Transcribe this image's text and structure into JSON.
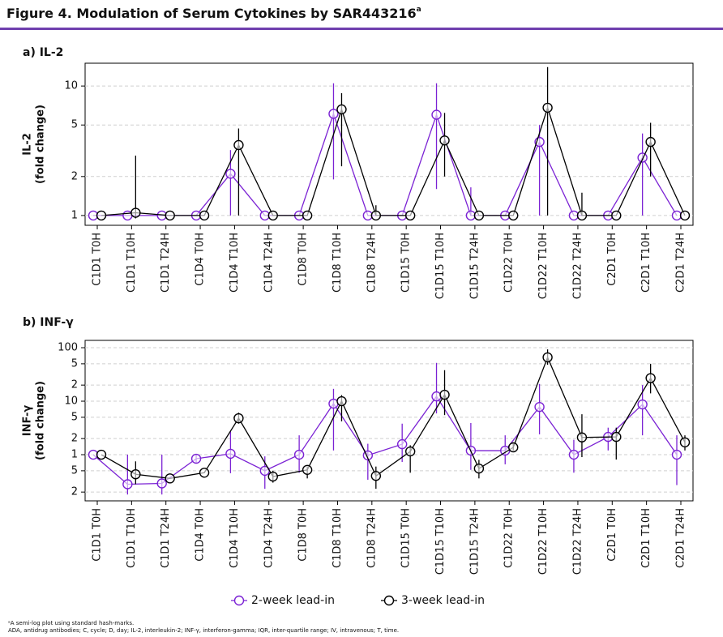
{
  "figure_title": "Figure 4. Modulation of Serum Cytokines by SAR443216",
  "figure_title_superscript": "a",
  "footnotes": [
    "ᵃA semi-log plot using standard hash-marks.",
    "ADA, antidrug antibodies; C, cycle; D, day; IL-2, interleukin-2; INF-γ, interferon-gamma; IQR, inter-quartile range; IV, intravenous; T, time."
  ],
  "chart_data": [
    {
      "type": "line",
      "title": "a) IL-2",
      "ylabel": [
        "IL-2",
        "(fold change)"
      ],
      "log_scale": true,
      "grid": true,
      "legend": "bottom",
      "categories": [
        "C1D1 T0H",
        "C1D1 T10H",
        "C1D1 T24H",
        "C1D4 T0H",
        "C1D4 T10H",
        "C1D4 T24H",
        "C1D8 T0H",
        "C1D8 T10H",
        "C1D8 T24H",
        "C1D15 T0H",
        "C1D15 T10H",
        "C1D15 T24H",
        "C1D22 T0H",
        "C1D22 T10H",
        "C1D22 T24H",
        "C2D1 T0H",
        "C2D1 T10H",
        "C2D1 T24H"
      ],
      "ylim": [
        0.84,
        15
      ],
      "yticks": [
        1,
        2,
        5,
        10
      ],
      "series": [
        {
          "name": "2-week lead-in",
          "color": "#7b22d4",
          "values": [
            1,
            1,
            1,
            1,
            2.1,
            1,
            1,
            6.1,
            1,
            1,
            6,
            1,
            1,
            3.7,
            1,
            1,
            2.8,
            1
          ],
          "low": [
            null,
            null,
            null,
            null,
            1,
            null,
            null,
            1.9,
            null,
            null,
            1.6,
            1,
            null,
            1,
            null,
            null,
            1,
            null
          ],
          "high": [
            null,
            null,
            null,
            null,
            3.2,
            null,
            null,
            10.5,
            null,
            null,
            10.5,
            1.65,
            null,
            5,
            null,
            null,
            4.3,
            null
          ]
        },
        {
          "name": "3-week lead-in",
          "color": "#000000",
          "values": [
            1,
            1.05,
            1,
            1,
            3.5,
            1,
            1,
            6.6,
            1,
            1,
            3.8,
            1,
            1,
            6.8,
            1,
            1,
            3.7,
            1
          ],
          "low": [
            null,
            0.95,
            null,
            null,
            1,
            null,
            null,
            2.4,
            1,
            null,
            2,
            null,
            null,
            1,
            1,
            null,
            2,
            null
          ],
          "high": [
            null,
            2.9,
            null,
            null,
            4.7,
            null,
            null,
            8.8,
            1.2,
            null,
            6.2,
            null,
            null,
            14,
            1.5,
            null,
            5.2,
            null
          ]
        }
      ]
    },
    {
      "type": "line",
      "title": "b) INF-γ",
      "ylabel": [
        "INF-γ",
        "(fold change)"
      ],
      "log_scale": true,
      "grid": true,
      "categories": [
        "C1D1 T0H",
        "C1D1 T10H",
        "C1D1 T24H",
        "C1D4 T0H",
        "C1D4 T10H",
        "C1D4 T24H",
        "C1D8 T0H",
        "C1D8 T10H",
        "C1D8 T24H",
        "C1D15 T0H",
        "C1D15 T10H",
        "C1D15 T24H",
        "C1D22 T0H",
        "C1D22 T10H",
        "C1D22 T24H",
        "C2D1 T0H",
        "C2D1 T10H",
        "C2D1 T24H"
      ],
      "ylim": [
        0.137,
        137
      ],
      "yticks": [
        100,
        {
          "value": 50,
          "label": "5"
        },
        {
          "value": 20,
          "label": "2"
        },
        10,
        5,
        2,
        1,
        {
          "value": 0.5,
          "label": "5"
        },
        {
          "value": 0.2,
          "label": "2"
        }
      ],
      "series": [
        {
          "color": "#7b22d4",
          "values": [
            1,
            0.28,
            0.29,
            0.84,
            1.04,
            0.5,
            1,
            9,
            0.97,
            1.57,
            12.3,
            1.19,
            1.19,
            7.8,
            1,
            2.15,
            8.7,
            1
          ],
          "low": [
            null,
            0.18,
            0.18,
            0.7,
            0.45,
            0.23,
            0.46,
            1.2,
            0.34,
            0.73,
            5.9,
            0.52,
            0.66,
            2.4,
            0.46,
            1.2,
            2.3,
            0.27
          ],
          "high": [
            null,
            1,
            1,
            1,
            2.7,
            0.93,
            2.3,
            17,
            1.6,
            3.8,
            52,
            3.9,
            2.3,
            21,
            1.9,
            3.2,
            20,
            2.3
          ]
        },
        {
          "color": "#000000",
          "values": [
            1,
            0.43,
            0.36,
            0.46,
            4.8,
            0.39,
            0.52,
            10,
            0.4,
            1.15,
            13.2,
            0.55,
            1.37,
            66,
            2.1,
            2.15,
            27,
            1.7
          ],
          "low": [
            null,
            0.28,
            null,
            null,
            3.8,
            0.3,
            0.36,
            4.2,
            0.23,
            0.46,
            5.5,
            0.36,
            1.2,
            48,
            0.9,
            0.81,
            14,
            1.2
          ],
          "high": [
            null,
            0.75,
            null,
            null,
            6.1,
            0.5,
            0.6,
            13,
            0.6,
            1.5,
            38,
            0.8,
            1.6,
            93,
            5.7,
            3.2,
            50,
            2.3
          ]
        }
      ]
    }
  ]
}
